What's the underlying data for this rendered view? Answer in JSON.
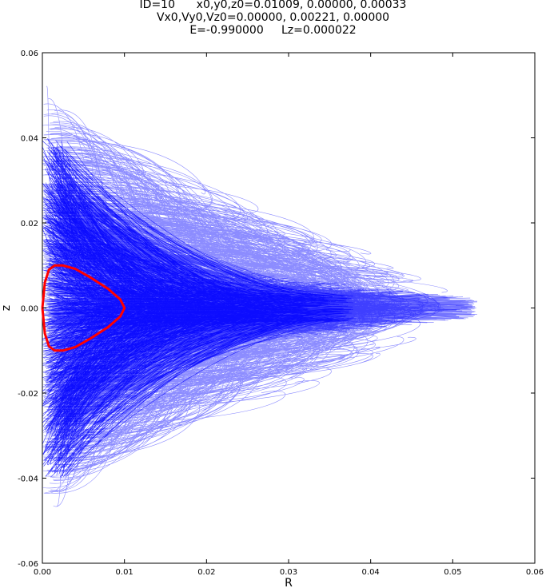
{
  "title_lines": [
    "ID=10      x0,y0,z0=0.01009, 0.00000, 0.00033",
    "Vx0,Vy0,Vz0=0.00000, 0.00221, 0.00000",
    "E=-0.990000     Lz=0.000022"
  ],
  "chart_data": {
    "type": "line",
    "title": "ID=10      x0,y0,z0=0.01009, 0.00000, 0.00033 / Vx0,Vy0,Vz0=0.00000, 0.00221, 0.00000 / E=-0.990000     Lz=0.000022",
    "xlabel": "R",
    "ylabel": "z",
    "xlim": [
      0.0,
      0.06
    ],
    "ylim": [
      -0.06,
      0.06
    ],
    "x_ticks": [
      0.0,
      0.01,
      0.02,
      0.03,
      0.04,
      0.05,
      0.06
    ],
    "y_ticks": [
      -0.06,
      -0.04,
      -0.02,
      0.0,
      0.02,
      0.04,
      0.06
    ],
    "x_tick_labels": [
      "0.00",
      "0.01",
      "0.02",
      "0.03",
      "0.04",
      "0.05",
      "0.06"
    ],
    "y_tick_labels": [
      "-0.06",
      "-0.04",
      "-0.02",
      "0.00",
      "0.02",
      "0.04",
      "0.06"
    ],
    "grid": false,
    "series": [
      {
        "color": "#0000ff",
        "style": "thin dense orbit trajectory in meridional plane",
        "extent": {
          "R_max": 0.055,
          "z_max": 0.053,
          "z_min": -0.049
        }
      },
      {
        "color": "#ff0000",
        "style": "thick zero-velocity curve",
        "points": [
          [
            0.0,
            0.0
          ],
          [
            0.0003,
            0.006
          ],
          [
            0.0008,
            0.009
          ],
          [
            0.0015,
            0.01
          ],
          [
            0.0025,
            0.01
          ],
          [
            0.004,
            0.0092
          ],
          [
            0.006,
            0.007
          ],
          [
            0.008,
            0.0045
          ],
          [
            0.0095,
            0.002
          ],
          [
            0.01,
            0.0
          ],
          [
            0.0095,
            -0.002
          ],
          [
            0.008,
            -0.0045
          ],
          [
            0.006,
            -0.007
          ],
          [
            0.004,
            -0.0092
          ],
          [
            0.0025,
            -0.01
          ],
          [
            0.0015,
            -0.01
          ],
          [
            0.0008,
            -0.009
          ],
          [
            0.0003,
            -0.006
          ],
          [
            0.0,
            0.0
          ]
        ]
      }
    ]
  }
}
